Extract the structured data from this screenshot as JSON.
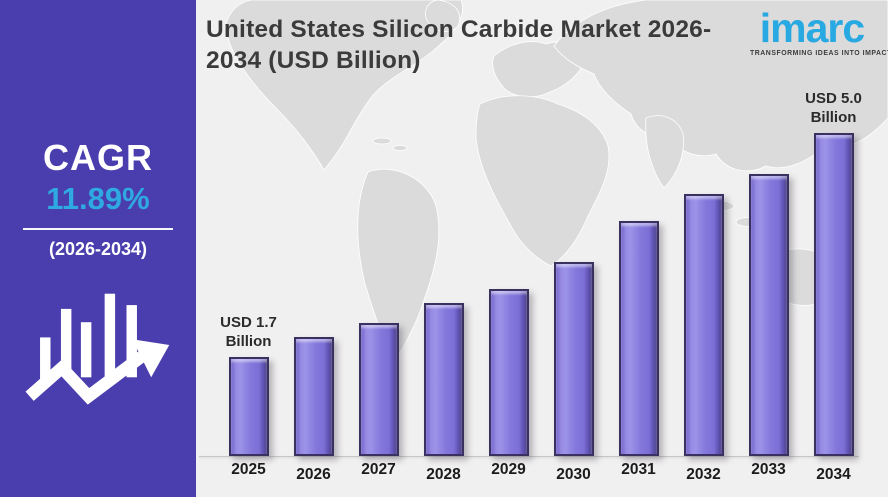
{
  "page": {
    "background": "#F1F0F0"
  },
  "sidebar": {
    "background": "#4A3EAE",
    "cagr_label": "CAGR",
    "cagr_value": "11.89%",
    "cagr_value_color": "#2FA9E1",
    "period": "(2026-2034)"
  },
  "header": {
    "title": "United States Silicon Carbide Market 2026-2034 (USD Billion)",
    "title_lines": [
      "United States Silicon Carbide Market 2026-",
      "2034 (USD Billion)"
    ]
  },
  "logo": {
    "name": "imarc",
    "tagline": "TRANSFORMING IDEAS INTO IMPACT",
    "brand_color": "#29A9E2"
  },
  "chart_data": {
    "type": "bar",
    "title": "United States Silicon Carbide Market 2026-2034 (USD Billion)",
    "unit": "USD Billion",
    "categories": [
      "2025",
      "2026",
      "2027",
      "2028",
      "2029",
      "2030",
      "2031",
      "2032",
      "2033",
      "2034"
    ],
    "values": [
      1.7,
      2.0,
      2.2,
      2.5,
      2.7,
      3.1,
      3.7,
      4.1,
      4.4,
      5.0
    ],
    "annotations": [
      {
        "category": "2025",
        "line1": "USD 1.7",
        "line2": "Billion"
      },
      {
        "category": "2034",
        "line1": "USD 5.0",
        "line2": "Billion"
      }
    ],
    "bar_color": "#8478DC",
    "bar_border_color": "#3A3160",
    "ylim": [
      0.3,
      5.0
    ],
    "grid": false,
    "legend": false
  }
}
